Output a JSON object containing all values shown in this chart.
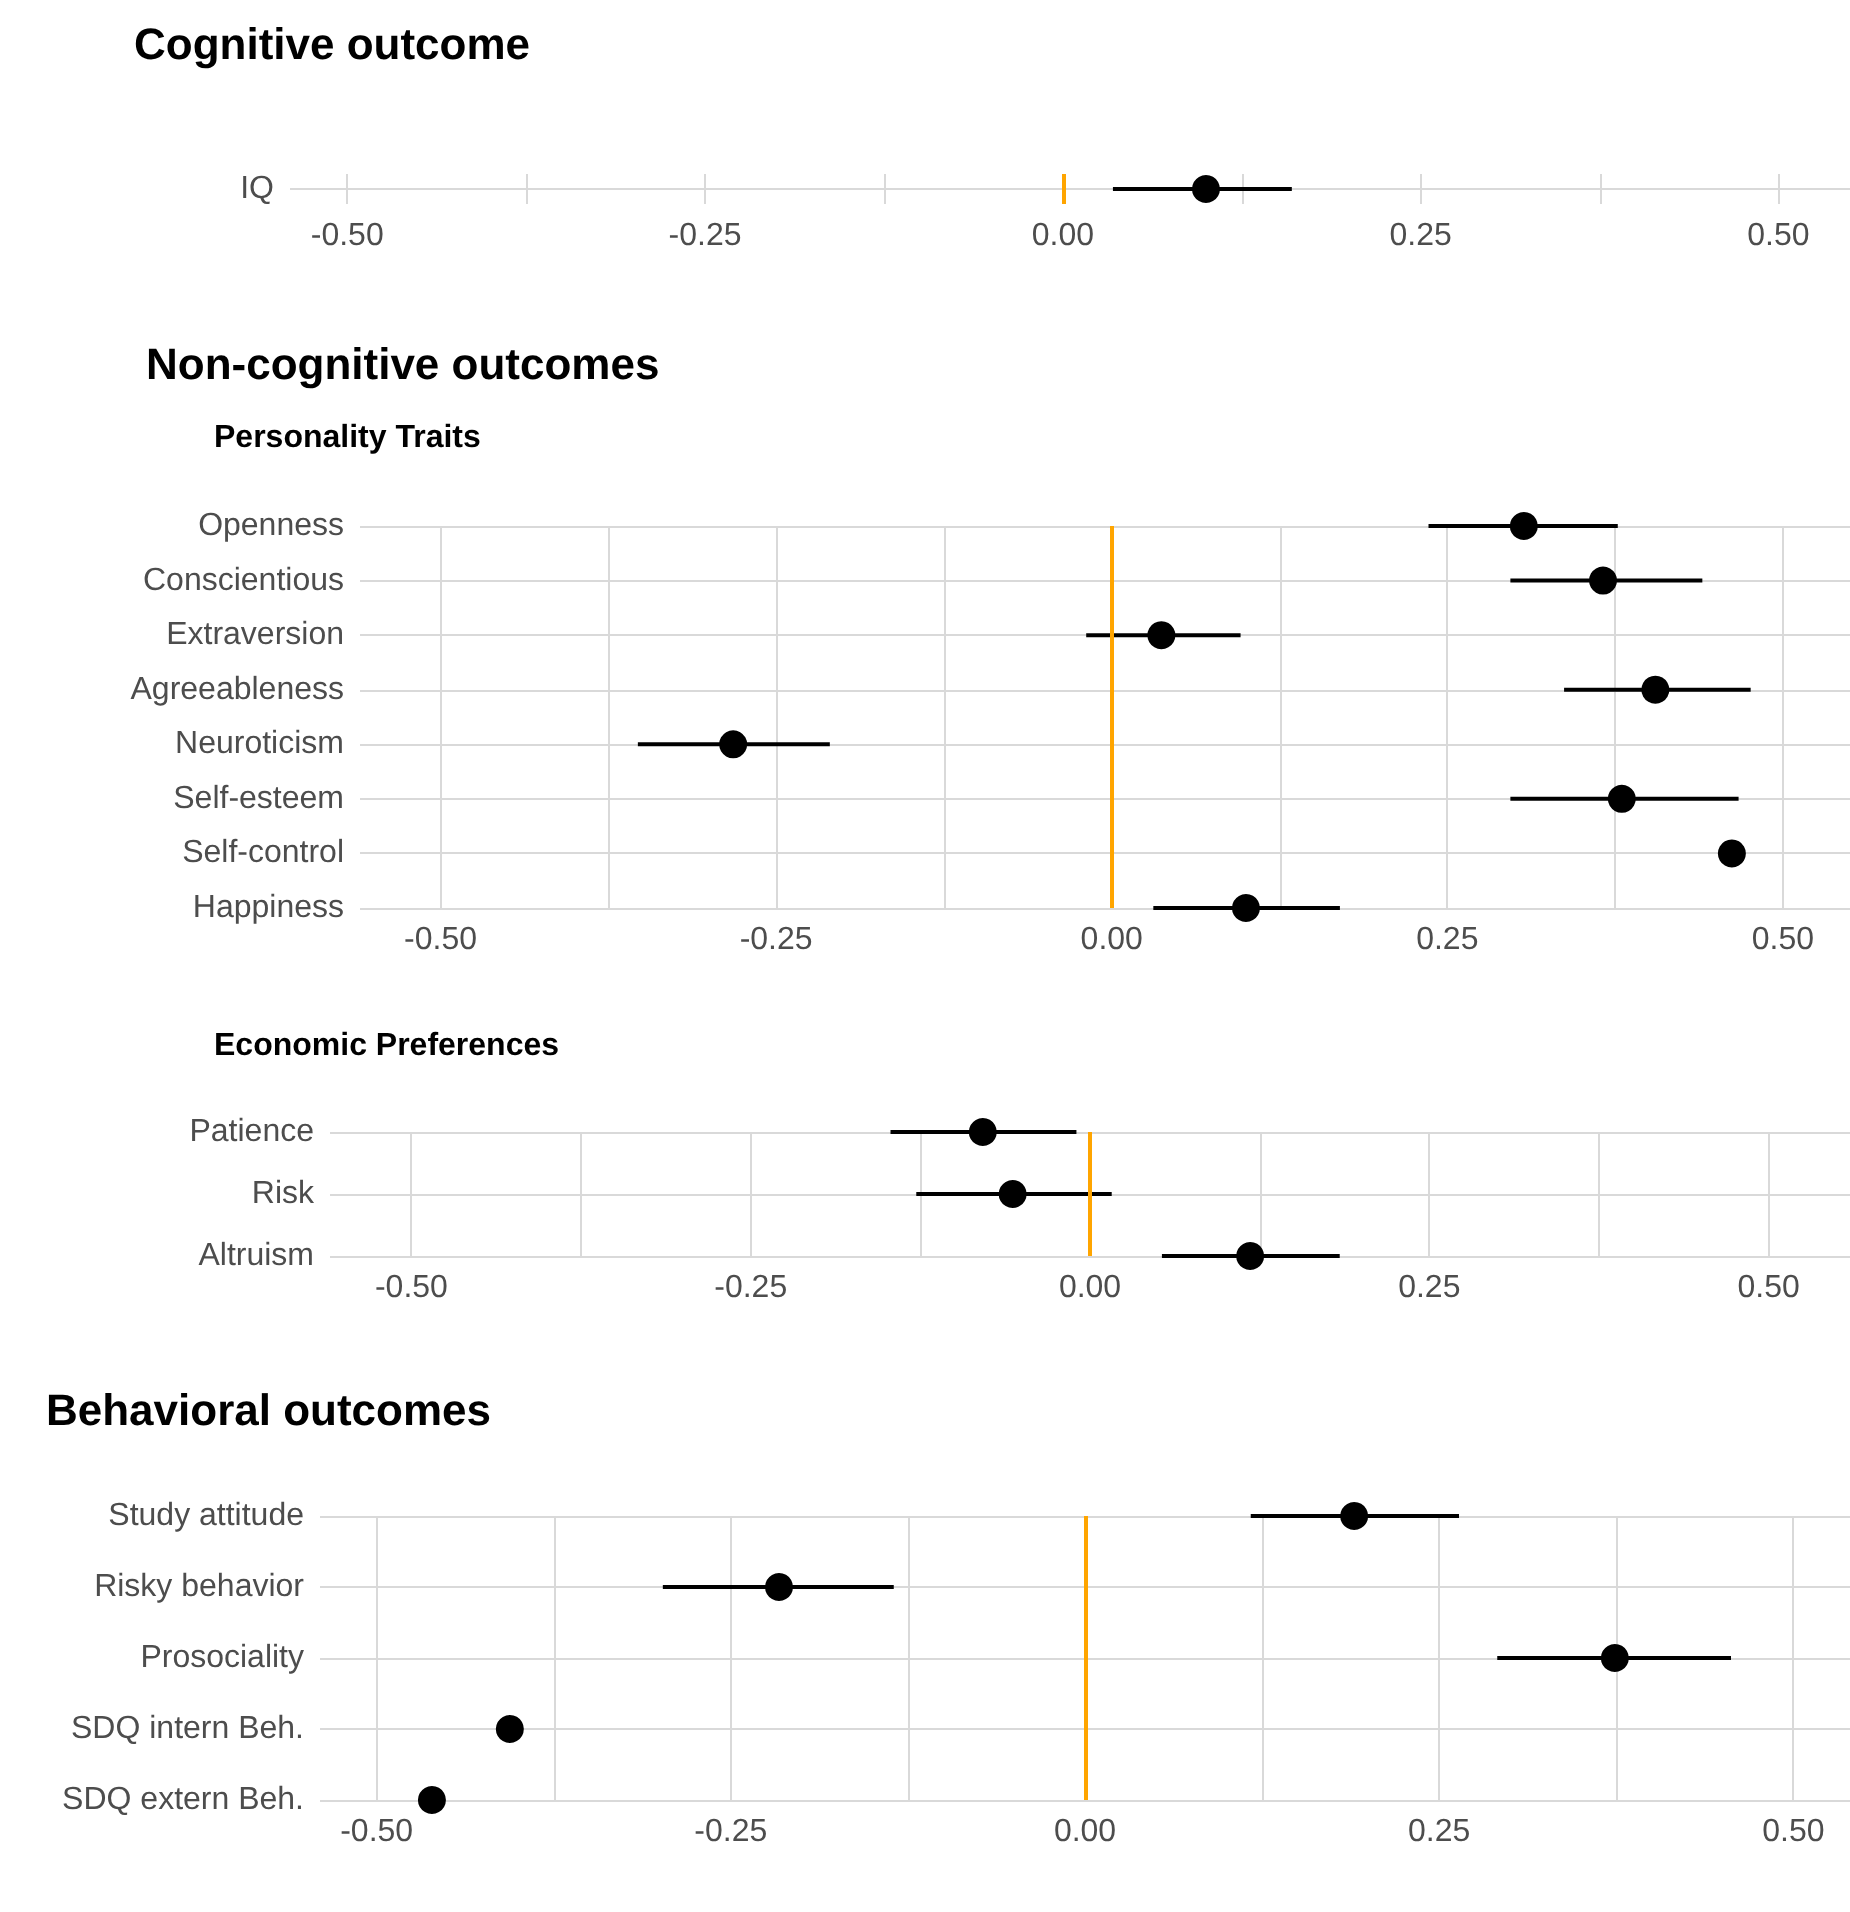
{
  "chart_data": [
    {
      "type": "scatter",
      "orientation": "horizontal",
      "title": "Cognitive outcome",
      "categories": [
        "IQ"
      ],
      "series": [
        {
          "color": "#000000",
          "values": [
            0.1
          ],
          "errors": [
            [
              0.035,
              0.16
            ]
          ]
        }
      ],
      "xlim": [
        -0.54,
        0.55
      ],
      "xticks": [
        {
          "value": -0.5,
          "label": "-0.50"
        },
        {
          "value": -0.375,
          "label": null
        },
        {
          "value": -0.25,
          "label": "-0.25"
        },
        {
          "value": -0.125,
          "label": null
        },
        {
          "value": 0,
          "label": "0.00"
        },
        {
          "value": 0.125,
          "label": null
        },
        {
          "value": 0.25,
          "label": "0.25"
        },
        {
          "value": 0.375,
          "label": null
        },
        {
          "value": 0.5,
          "label": "0.50"
        }
      ],
      "ref_lines": [
        {
          "axis": "x",
          "value": 0,
          "color": "#ffa500"
        }
      ],
      "grid": true,
      "marker": "circle"
    },
    {
      "type": "scatter",
      "orientation": "horizontal",
      "title": "Non-cognitive outcomes",
      "subtitle": "Personality Traits",
      "categories": [
        "Openness",
        "Conscientious",
        "Extraversion",
        "Agreeableness",
        "Neuroticism",
        "Self-esteem",
        "Self-control",
        "Happiness"
      ],
      "series": [
        {
          "color": "#000000",
          "values": [
            0.307,
            0.366,
            0.037,
            0.405,
            -0.282,
            0.38,
            0.462,
            0.1
          ],
          "errors": [
            [
              0.236,
              0.377
            ],
            [
              0.297,
              0.44
            ],
            [
              -0.019,
              0.096
            ],
            [
              0.337,
              0.476
            ],
            [
              -0.353,
              -0.21
            ],
            [
              0.297,
              0.467
            ],
            null,
            [
              0.031,
              0.17
            ]
          ]
        }
      ],
      "xlim": [
        -0.56,
        0.55
      ],
      "xticks": [
        {
          "value": -0.5,
          "label": "-0.50"
        },
        {
          "value": -0.375,
          "label": null
        },
        {
          "value": -0.25,
          "label": "-0.25"
        },
        {
          "value": -0.125,
          "label": null
        },
        {
          "value": 0,
          "label": "0.00"
        },
        {
          "value": 0.125,
          "label": null
        },
        {
          "value": 0.25,
          "label": "0.25"
        },
        {
          "value": 0.375,
          "label": null
        },
        {
          "value": 0.5,
          "label": "0.50"
        }
      ],
      "ref_lines": [
        {
          "axis": "x",
          "value": 0,
          "color": "#ffa500"
        }
      ],
      "grid": true,
      "marker": "circle"
    },
    {
      "type": "scatter",
      "orientation": "horizontal",
      "subtitle": "Economic Preferences",
      "categories": [
        "Patience",
        "Risk",
        "Altruism"
      ],
      "series": [
        {
          "color": "#000000",
          "values": [
            -0.079,
            -0.057,
            0.118
          ],
          "errors": [
            [
              -0.147,
              -0.01
            ],
            [
              -0.128,
              0.016
            ],
            [
              0.053,
              0.184
            ]
          ]
        }
      ],
      "xlim": [
        -0.56,
        0.56
      ],
      "xticks": [
        {
          "value": -0.5,
          "label": "-0.50"
        },
        {
          "value": -0.375,
          "label": null
        },
        {
          "value": -0.25,
          "label": "-0.25"
        },
        {
          "value": -0.125,
          "label": null
        },
        {
          "value": 0,
          "label": "0.00"
        },
        {
          "value": 0.125,
          "label": null
        },
        {
          "value": 0.25,
          "label": "0.25"
        },
        {
          "value": 0.375,
          "label": null
        },
        {
          "value": 0.5,
          "label": "0.50"
        }
      ],
      "ref_lines": [
        {
          "axis": "x",
          "value": 0,
          "color": "#ffa500"
        }
      ],
      "grid": true,
      "marker": "circle"
    },
    {
      "type": "scatter",
      "orientation": "horizontal",
      "title": "Behavioral outcomes",
      "categories": [
        "Study attitude",
        "Risky behavior",
        "Prosociality",
        "SDQ intern Beh.",
        "SDQ extern Beh."
      ],
      "series": [
        {
          "color": "#000000",
          "values": [
            0.19,
            -0.216,
            0.374,
            -0.406,
            -0.461
          ],
          "errors": [
            [
              0.117,
              0.264
            ],
            [
              -0.298,
              -0.135
            ],
            [
              0.291,
              0.456
            ],
            null,
            null
          ]
        }
      ],
      "xlim": [
        -0.54,
        0.54
      ],
      "xticks": [
        {
          "value": -0.5,
          "label": "-0.50"
        },
        {
          "value": -0.375,
          "label": null
        },
        {
          "value": -0.25,
          "label": "-0.25"
        },
        {
          "value": -0.125,
          "label": null
        },
        {
          "value": 0,
          "label": "0.00"
        },
        {
          "value": 0.125,
          "label": null
        },
        {
          "value": 0.25,
          "label": "0.25"
        },
        {
          "value": 0.375,
          "label": null
        },
        {
          "value": 0.5,
          "label": "0.50"
        }
      ],
      "ref_lines": [
        {
          "axis": "x",
          "value": 0,
          "color": "#ffa500"
        }
      ],
      "grid": true,
      "marker": "circle"
    }
  ]
}
